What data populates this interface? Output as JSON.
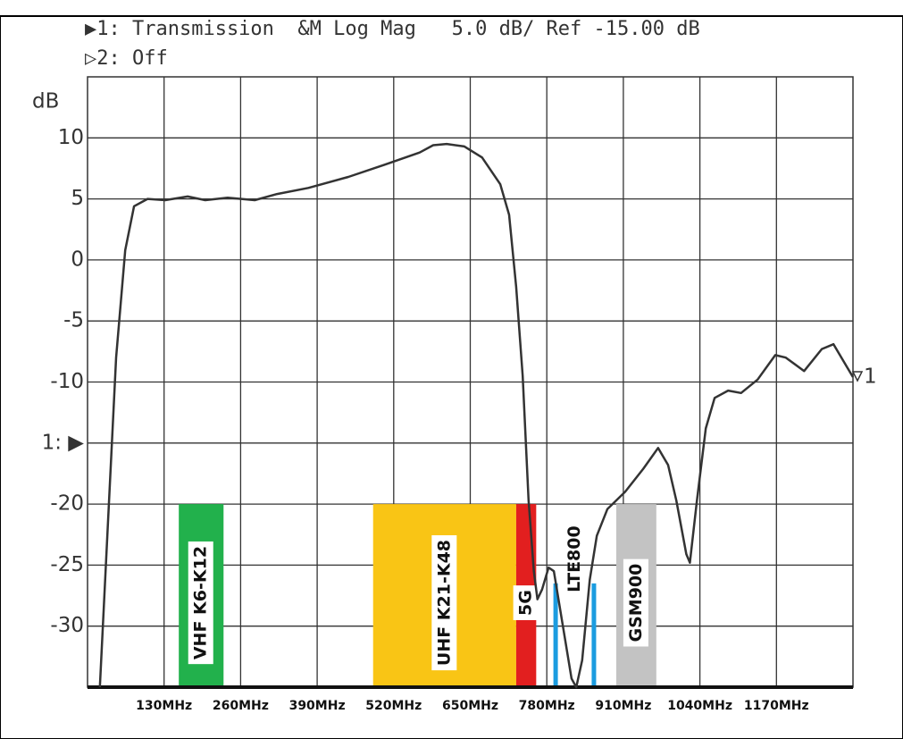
{
  "chart_data": {
    "type": "line",
    "header": [
      "▶1: Transmission  &M Log Mag   5.0 dB/ Ref -15.00 dB",
      "▷2: Off"
    ],
    "y_label": "dB",
    "marker_label": "1",
    "xlim": [
      0,
      1300
    ],
    "ylim": [
      -35,
      15
    ],
    "xticks": [
      {
        "value": 130,
        "label": "130MHz"
      },
      {
        "value": 260,
        "label": "260MHz"
      },
      {
        "value": 390,
        "label": "390MHz"
      },
      {
        "value": 520,
        "label": "520MHz"
      },
      {
        "value": 650,
        "label": "650MHz"
      },
      {
        "value": 780,
        "label": "780MHz"
      },
      {
        "value": 910,
        "label": "910MHz"
      },
      {
        "value": 1040,
        "label": "1040MHz"
      },
      {
        "value": 1170,
        "label": "1170MHz"
      }
    ],
    "yticks": [
      10,
      5,
      0,
      -5,
      -10,
      {
        "value": -15,
        "label": "1: ▶"
      },
      -20,
      -25,
      -30
    ],
    "grid": true,
    "bands": [
      {
        "label": "VHF K6-K12",
        "color": "#22b14c",
        "x": [
          155,
          231
        ],
        "y": [
          -20,
          -35
        ]
      },
      {
        "label": "UHF K21-K48",
        "color": "#f9c515",
        "x": [
          485,
          728
        ],
        "y": [
          -20,
          -35
        ]
      },
      {
        "label": "5G",
        "color": "#e21f1f",
        "x": [
          728,
          762
        ],
        "y": [
          -20,
          -35
        ]
      },
      {
        "label": "GSM900",
        "color": "#c3c3c3",
        "x": [
          898,
          966
        ],
        "y": [
          -20,
          -35
        ]
      }
    ],
    "lines": {
      "label": "LTE800",
      "color": "#1b9ce0",
      "x": [
        795,
        860
      ],
      "y": [
        -26.5,
        -35
      ]
    },
    "series": [
      {
        "name": "Transmission",
        "color": "#333333",
        "x": [
          21,
          48.5,
          64,
          79,
          102,
          132,
          170,
          200,
          238,
          284,
          322,
          375,
          443,
          504,
          564,
          587,
          610,
          640,
          670,
          701,
          716,
          728,
          739,
          749,
          758,
          764,
          772,
          783,
          792,
          807,
          822,
          830,
          840,
          853,
          865,
          883,
          913,
          944,
          969,
          986,
          1000,
          1017,
          1023,
          1035,
          1050,
          1065,
          1088,
          1110,
          1138,
          1168,
          1186,
          1217,
          1247,
          1267,
          1289,
          1300
        ],
        "values": [
          -35,
          -8,
          0.8,
          4.4,
          5,
          4.9,
          5.2,
          4.9,
          5.1,
          4.9,
          5.4,
          5.9,
          6.8,
          7.8,
          8.8,
          9.4,
          9.5,
          9.3,
          8.4,
          6.2,
          3.7,
          -2.2,
          -9.5,
          -19.7,
          -25.5,
          -27.8,
          -27,
          -25.2,
          -25.5,
          -29.9,
          -34.3,
          -35,
          -32.8,
          -26.2,
          -22.6,
          -20.4,
          -19,
          -17.1,
          -15.4,
          -16.8,
          -19.7,
          -24.1,
          -24.8,
          -19.7,
          -13.8,
          -11.3,
          -10.7,
          -10.9,
          -9.8,
          -7.8,
          -8,
          -9.1,
          -7.3,
          -6.9,
          -8.7,
          -9.6
        ]
      }
    ]
  }
}
